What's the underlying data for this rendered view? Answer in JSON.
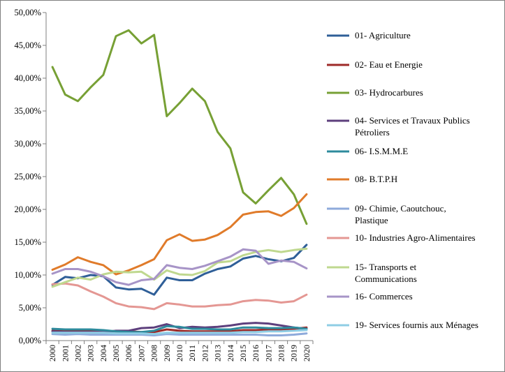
{
  "chart_data": {
    "type": "line",
    "title": "",
    "xlabel": "",
    "ylabel": "",
    "x": [
      "2000",
      "2001",
      "2002",
      "2003",
      "2004",
      "2005",
      "2006",
      "2007",
      "2008",
      "2009",
      "2010",
      "2011",
      "2012",
      "2013",
      "2014",
      "2015",
      "2016",
      "2017",
      "2018",
      "2019",
      "2020"
    ],
    "ylim": [
      0,
      50
    ],
    "ytick_step": 5,
    "ytick_labels": [
      "0,00%",
      "5,00%",
      "10,00%",
      "15,00%",
      "20,00%",
      "25,00%",
      "30,00%",
      "35,00%",
      "40,00%",
      "45,00%",
      "50,00%"
    ],
    "grid": false,
    "legend_position": "right",
    "series": [
      {
        "name": "01- Agriculture",
        "legend_lines": [
          "01- Agriculture"
        ],
        "color": "#2f5f98",
        "values": [
          8.5,
          9.7,
          9.5,
          10.0,
          9.8,
          8.1,
          7.8,
          7.9,
          7.0,
          9.6,
          9.2,
          9.2,
          10.2,
          10.9,
          11.3,
          12.5,
          12.9,
          12.4,
          12.1,
          12.6,
          14.6
        ]
      },
      {
        "name": "02- Eau et Energie",
        "legend_lines": [
          "02- Eau et Energie"
        ],
        "color": "#9e2a28",
        "values": [
          1.5,
          1.4,
          1.5,
          1.4,
          1.4,
          1.4,
          1.4,
          1.3,
          1.3,
          1.7,
          1.5,
          1.4,
          1.4,
          1.4,
          1.4,
          1.6,
          1.6,
          1.7,
          1.7,
          1.8,
          2.0
        ]
      },
      {
        "name": "03- Hydrocarbures",
        "legend_lines": [
          "03- Hydrocarbures"
        ],
        "color": "#77a035",
        "values": [
          41.7,
          37.5,
          36.5,
          38.6,
          40.5,
          46.4,
          47.3,
          45.3,
          46.6,
          34.2,
          36.2,
          38.4,
          36.5,
          31.8,
          29.3,
          22.6,
          20.9,
          22.9,
          24.8,
          22.3,
          17.8
        ]
      },
      {
        "name": "04- Services et Travaux Publics Pétroliers",
        "legend_lines": [
          "04- Services et Travaux Publics",
          "Pétroliers"
        ],
        "color": "#5d3f7d",
        "values": [
          1.4,
          1.3,
          1.3,
          1.3,
          1.3,
          1.5,
          1.5,
          1.9,
          2.0,
          2.5,
          1.9,
          2.1,
          2.0,
          2.1,
          2.3,
          2.6,
          2.7,
          2.6,
          2.3,
          2.0,
          1.8
        ]
      },
      {
        "name": "06- I.S.M.M.E",
        "legend_lines": [
          "06- I.S.M.M.E"
        ],
        "color": "#2e8b9d",
        "values": [
          1.8,
          1.7,
          1.7,
          1.7,
          1.6,
          1.4,
          1.3,
          1.3,
          1.5,
          2.2,
          2.1,
          1.8,
          1.8,
          1.7,
          1.7,
          2.0,
          2.0,
          1.9,
          1.9,
          2.0,
          1.8
        ]
      },
      {
        "name": "08- B.T.P.H",
        "legend_lines": [
          "08- B.T.P.H"
        ],
        "color": "#e07b2a",
        "values": [
          10.8,
          11.6,
          12.7,
          12.0,
          11.5,
          10.1,
          10.7,
          11.5,
          12.4,
          15.3,
          16.2,
          15.2,
          15.4,
          16.1,
          17.3,
          19.2,
          19.6,
          19.7,
          19.0,
          20.2,
          22.3
        ]
      },
      {
        "name": "09- Chimie, Caoutchouc, Plastique",
        "legend_lines": [
          "09- Chimie, Caoutchouc,",
          "Plastique"
        ],
        "color": "#8eaadb",
        "values": [
          1.0,
          0.9,
          1.0,
          0.9,
          0.9,
          0.9,
          0.9,
          0.9,
          0.8,
          1.0,
          0.9,
          0.9,
          0.9,
          0.9,
          0.9,
          0.9,
          0.9,
          0.8,
          0.8,
          0.9,
          1.1
        ]
      },
      {
        "name": "10- Industries Agro-Alimentaires",
        "legend_lines": [
          "10- Industries Agro-Alimentaires"
        ],
        "color": "#e49793",
        "values": [
          8.6,
          8.7,
          8.4,
          7.5,
          6.7,
          5.7,
          5.2,
          5.1,
          4.8,
          5.7,
          5.5,
          5.2,
          5.2,
          5.4,
          5.5,
          6.0,
          6.2,
          6.1,
          5.8,
          6.0,
          7.0
        ]
      },
      {
        "name": "15- Transports et Communications",
        "legend_lines": [
          "15- Transports et",
          "Communications"
        ],
        "color": "#bfd88f",
        "values": [
          8.2,
          8.9,
          9.6,
          9.3,
          10.1,
          10.5,
          10.4,
          10.5,
          9.3,
          10.7,
          10.1,
          10.0,
          10.6,
          11.9,
          12.1,
          13.0,
          13.5,
          13.8,
          13.5,
          13.8,
          14.0
        ]
      },
      {
        "name": "16- Commerces",
        "legend_lines": [
          "16- Commerces"
        ],
        "color": "#a794c7",
        "values": [
          10.2,
          10.9,
          10.9,
          10.5,
          9.8,
          8.9,
          8.5,
          9.2,
          9.4,
          11.5,
          11.1,
          10.9,
          11.4,
          12.1,
          12.8,
          13.9,
          13.7,
          11.7,
          12.2,
          12.0,
          11.0
        ]
      },
      {
        "name": "19- Services fournis aux Ménages",
        "legend_lines": [
          "19- Services fournis aux Ménages"
        ],
        "color": "#8fcde4",
        "values": [
          1.2,
          1.2,
          1.2,
          1.2,
          1.2,
          1.1,
          1.1,
          1.1,
          1.0,
          1.2,
          1.2,
          1.2,
          1.2,
          1.2,
          1.2,
          1.3,
          1.3,
          1.4,
          1.4,
          1.5,
          1.6
        ]
      }
    ]
  }
}
